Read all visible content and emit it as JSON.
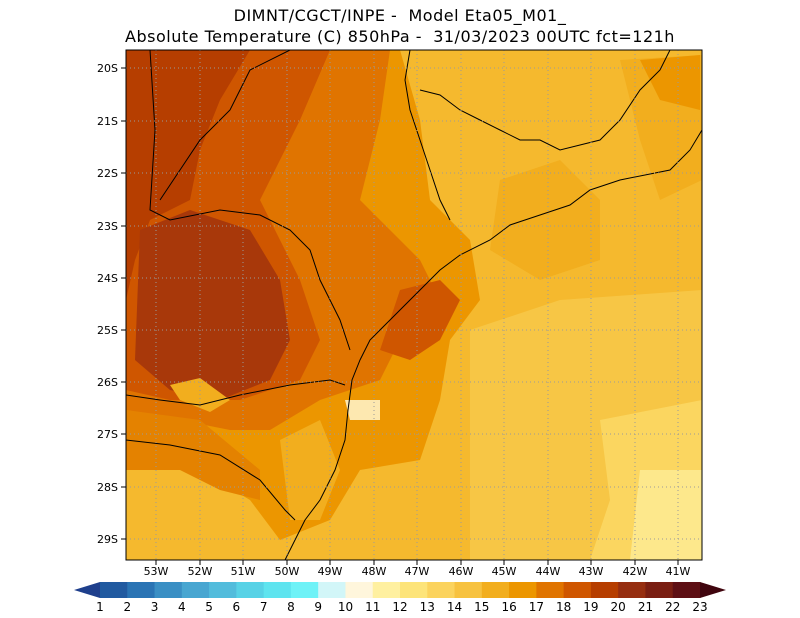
{
  "header": {
    "line1": "DIMNT/CGCT/INPE -  Model Eta05_M01_",
    "line2": "Absolute Temperature (C) 850hPa -  31/03/2023 00UTC fct=121h"
  },
  "map": {
    "lat_labels": [
      "20S",
      "21S",
      "22S",
      "23S",
      "24S",
      "25S",
      "26S",
      "27S",
      "28S",
      "29S"
    ],
    "lon_labels": [
      "53W",
      "52W",
      "51W",
      "50W",
      "49W",
      "48W",
      "47W",
      "46W",
      "45W",
      "44W",
      "43W",
      "42W",
      "41W"
    ],
    "grid": "dotted"
  },
  "colorbar": {
    "labels": [
      "1",
      "2",
      "3",
      "4",
      "5",
      "6",
      "7",
      "8",
      "9",
      "10",
      "11",
      "12",
      "13",
      "14",
      "15",
      "16",
      "17",
      "18",
      "19",
      "20",
      "21",
      "22",
      "23"
    ],
    "colors": [
      "#1e3f8c",
      "#215aa0",
      "#2a74b4",
      "#3a8fc4",
      "#48a6d1",
      "#52bcdc",
      "#58d2e6",
      "#5fe4ef",
      "#6ef2f7",
      "#d2f6f8",
      "#fff6dc",
      "#fff0a0",
      "#fde47a",
      "#fbd35e",
      "#f7c240",
      "#f2ae1e",
      "#ec9600",
      "#e07400",
      "#cf5600",
      "#b63e00",
      "#962e10",
      "#7a1e12",
      "#5e0f14",
      "#40050e"
    ]
  }
}
